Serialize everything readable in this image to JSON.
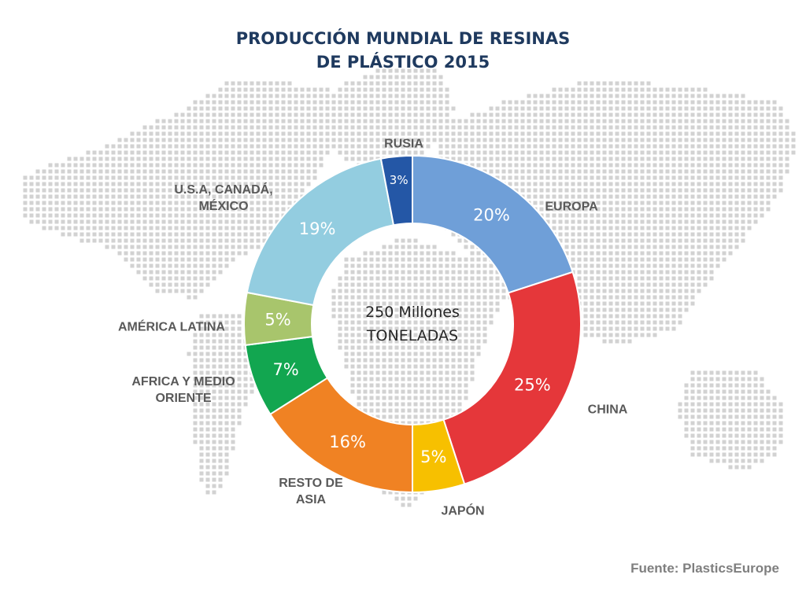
{
  "title_lines": [
    "PRODUCCIÓN MUNDIAL  DE RESINAS",
    "DE PLÁSTICO 2015"
  ],
  "source": "Fuente: PlasticsEurope",
  "center_label": [
    "250 Millones",
    "TONELADAS"
  ],
  "chart_data": {
    "type": "pie",
    "title": "PRODUCCIÓN MUNDIAL  DE RESINAS DE PLÁSTICO 2015",
    "donut": true,
    "unit": "%",
    "slices": [
      {
        "label": "EUROPA",
        "label_lines": [
          "EUROPA"
        ],
        "value": 20,
        "value_label": "20%",
        "color": "#6f9fd8"
      },
      {
        "label": "CHINA",
        "label_lines": [
          "CHINA"
        ],
        "value": 25,
        "value_label": "25%",
        "color": "#e5373a"
      },
      {
        "label": "JAPÓN",
        "label_lines": [
          "JAPÓN"
        ],
        "value": 5,
        "value_label": "5%",
        "color": "#f7c000"
      },
      {
        "label": "RESTO DE ASIA",
        "label_lines": [
          "RESTO DE",
          "ASIA"
        ],
        "value": 16,
        "value_label": "16%",
        "color": "#f08223"
      },
      {
        "label": "AFRICA Y MEDIO ORIENTE",
        "label_lines": [
          "AFRICA Y MEDIO",
          "ORIENTE"
        ],
        "value": 7,
        "value_label": "7%",
        "color": "#12a650"
      },
      {
        "label": "AMÉRICA LATINA",
        "label_lines": [
          "AMÉRICA LATINA"
        ],
        "value": 5,
        "value_label": "5%",
        "color": "#a8c56c"
      },
      {
        "label": "U.S.A, CANADÁ, MÉXICO",
        "label_lines": [
          "U.S.A, CANADÁ,",
          "MÉXICO"
        ],
        "value": 19,
        "value_label": "19%",
        "color": "#93cde0"
      },
      {
        "label": "RUSIA",
        "label_lines": [
          "RUSIA"
        ],
        "value": 3,
        "value_label": "3%",
        "color": "#2457a6"
      }
    ]
  }
}
